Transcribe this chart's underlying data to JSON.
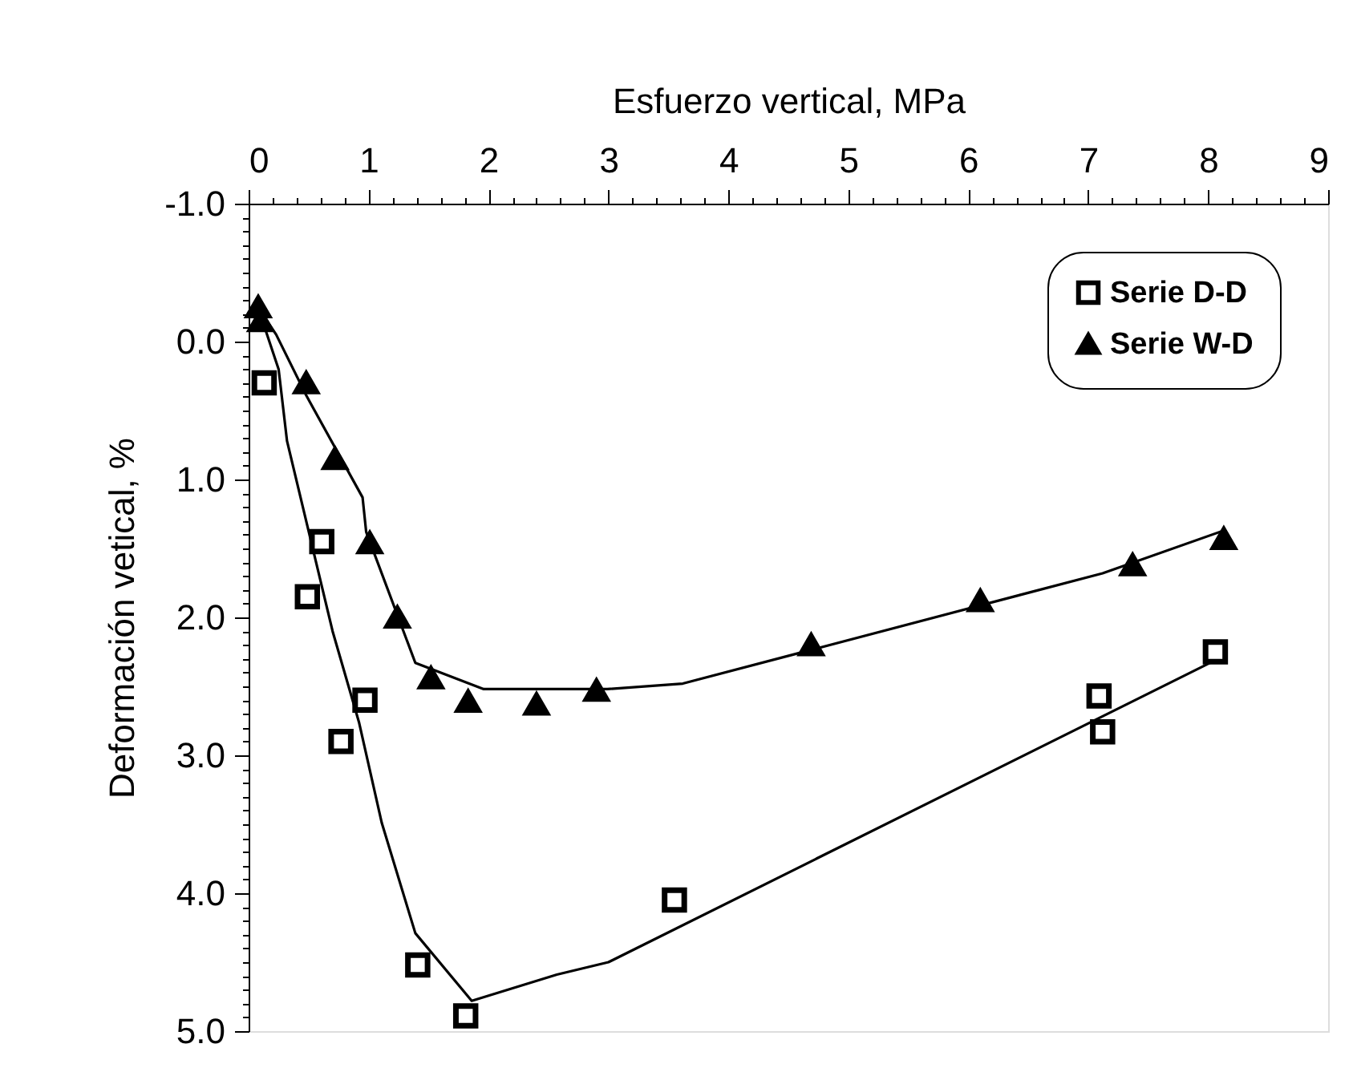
{
  "chart_data": {
    "type": "scatter",
    "xlabel": "Esfuerzo vertical,  MPa",
    "ylabel": "Deformación vetical, %",
    "xlim": [
      0,
      9
    ],
    "ylim": [
      5.0,
      -1.0
    ],
    "xticks": [
      0,
      {
        "value": 0.2,
        "label": null
      },
      {
        "value": 0.4,
        "label": null
      },
      {
        "value": 0.6,
        "label": null
      },
      {
        "value": 0.8,
        "label": null
      },
      1,
      {
        "value": 1.2,
        "label": null
      },
      {
        "value": 1.4,
        "label": null
      },
      {
        "value": 1.6,
        "label": null
      },
      {
        "value": 1.8,
        "label": null
      },
      2,
      {
        "value": 2.2,
        "label": null
      },
      {
        "value": 2.4,
        "label": null
      },
      {
        "value": 2.6,
        "label": null
      },
      {
        "value": 2.8,
        "label": null
      },
      3,
      {
        "value": 3.2,
        "label": null
      },
      {
        "value": 3.4,
        "label": null
      },
      {
        "value": 3.6,
        "label": null
      },
      {
        "value": 3.8,
        "label": null
      },
      4,
      {
        "value": 4.2,
        "label": null
      },
      {
        "value": 4.4,
        "label": null
      },
      {
        "value": 4.6,
        "label": null
      },
      {
        "value": 4.8,
        "label": null
      },
      5,
      {
        "value": 5.2,
        "label": null
      },
      {
        "value": 5.4,
        "label": null
      },
      {
        "value": 5.6,
        "label": null
      },
      {
        "value": 5.8,
        "label": null
      },
      6,
      {
        "value": 6.2,
        "label": null
      },
      {
        "value": 6.4,
        "label": null
      },
      {
        "value": 6.6,
        "label": null
      },
      {
        "value": 6.8,
        "label": null
      },
      7,
      {
        "value": 7.2,
        "label": null
      },
      {
        "value": 7.4,
        "label": null
      },
      {
        "value": 7.6,
        "label": null
      },
      {
        "value": 7.8,
        "label": null
      },
      8,
      {
        "value": 8.2,
        "label": null
      },
      {
        "value": 8.4,
        "label": null
      },
      {
        "value": 8.6,
        "label": null
      },
      {
        "value": 8.8,
        "label": null
      },
      9
    ],
    "yticks": [
      {
        "value": -1.0,
        "label": "-1.0"
      },
      {
        "value": -0.9,
        "label": null
      },
      {
        "value": -0.8,
        "label": null
      },
      {
        "value": -0.7,
        "label": null
      },
      {
        "value": -0.6,
        "label": null
      },
      {
        "value": -0.5,
        "label": null
      },
      {
        "value": -0.4,
        "label": null
      },
      {
        "value": -0.3,
        "label": null
      },
      {
        "value": -0.2,
        "label": null
      },
      {
        "value": -0.1,
        "label": null
      },
      {
        "value": 0.0,
        "label": "0.0"
      },
      {
        "value": 0.1,
        "label": null
      },
      {
        "value": 0.2,
        "label": null
      },
      {
        "value": 0.3,
        "label": null
      },
      {
        "value": 0.4,
        "label": null
      },
      {
        "value": 0.5,
        "label": null
      },
      {
        "value": 0.6,
        "label": null
      },
      {
        "value": 0.7,
        "label": null
      },
      {
        "value": 0.8,
        "label": null
      },
      {
        "value": 0.9,
        "label": null
      },
      {
        "value": 1.0,
        "label": "1.0"
      },
      {
        "value": 1.1,
        "label": null
      },
      {
        "value": 1.2,
        "label": null
      },
      {
        "value": 1.3,
        "label": null
      },
      {
        "value": 1.4,
        "label": null
      },
      {
        "value": 1.5,
        "label": null
      },
      {
        "value": 1.6,
        "label": null
      },
      {
        "value": 1.7,
        "label": null
      },
      {
        "value": 1.8,
        "label": null
      },
      {
        "value": 1.9,
        "label": null
      },
      {
        "value": 2.0,
        "label": "2.0"
      },
      {
        "value": 2.1,
        "label": null
      },
      {
        "value": 2.2,
        "label": null
      },
      {
        "value": 2.3,
        "label": null
      },
      {
        "value": 2.4,
        "label": null
      },
      {
        "value": 2.5,
        "label": null
      },
      {
        "value": 2.6,
        "label": null
      },
      {
        "value": 2.7,
        "label": null
      },
      {
        "value": 2.8,
        "label": null
      },
      {
        "value": 2.9,
        "label": null
      },
      {
        "value": 3.0,
        "label": "3.0"
      },
      {
        "value": 3.1,
        "label": null
      },
      {
        "value": 3.2,
        "label": null
      },
      {
        "value": 3.3,
        "label": null
      },
      {
        "value": 3.4,
        "label": null
      },
      {
        "value": 3.5,
        "label": null
      },
      {
        "value": 3.6,
        "label": null
      },
      {
        "value": 3.7,
        "label": null
      },
      {
        "value": 3.8,
        "label": null
      },
      {
        "value": 3.9,
        "label": null
      },
      {
        "value": 4.0,
        "label": "4.0"
      },
      {
        "value": 4.1,
        "label": null
      },
      {
        "value": 4.2,
        "label": null
      },
      {
        "value": 4.3,
        "label": null
      },
      {
        "value": 4.4,
        "label": null
      },
      {
        "value": 4.5,
        "label": null
      },
      {
        "value": 4.6,
        "label": null
      },
      {
        "value": 4.7,
        "label": null
      },
      {
        "value": 4.8,
        "label": null
      },
      {
        "value": 4.9,
        "label": null
      },
      {
        "value": 5.0,
        "label": "5.0"
      }
    ],
    "grid": false,
    "legend": "top right",
    "series": [
      {
        "name": "Serie D-D",
        "marker": "square",
        "color": "#000000",
        "x": [
          0.13,
          0.61,
          0.49,
          0.97,
          0.77,
          1.41,
          1.81,
          3.55,
          7.09,
          7.12,
          8.06
        ],
        "values": [
          0.3,
          1.45,
          1.85,
          2.6,
          2.9,
          4.52,
          4.89,
          4.05,
          2.57,
          2.83,
          2.25
        ]
      },
      {
        "name": "Serie W-D",
        "marker": "triangle",
        "color": "#000000",
        "x": [
          0.08,
          0.1,
          0.48,
          0.72,
          1.01,
          1.24,
          1.52,
          1.83,
          2.4,
          2.9,
          4.69,
          6.1,
          7.37,
          8.13
        ],
        "values": [
          -0.25,
          -0.15,
          0.3,
          0.85,
          1.46,
          2.0,
          2.44,
          2.61,
          2.63,
          2.53,
          2.2,
          1.88,
          1.62,
          1.43
        ]
      },
      {
        "type": "line",
        "marker": "none",
        "color": "#000000",
        "x": [
          0.1,
          0.25,
          0.32,
          0.7,
          0.92,
          1.11,
          1.39,
          1.86,
          2.57,
          3.0,
          8.06
        ],
        "values": [
          -0.19,
          0.2,
          0.72,
          2.1,
          2.76,
          3.49,
          4.29,
          4.78,
          4.59,
          4.5,
          2.31
        ]
      },
      {
        "type": "line",
        "marker": "none",
        "color": "#000000",
        "x": [
          0.1,
          0.23,
          0.48,
          0.95,
          0.98,
          1.39,
          1.96,
          2.99,
          3.62,
          7.12,
          8.13
        ],
        "values": [
          -0.22,
          -0.05,
          0.39,
          1.13,
          1.38,
          2.33,
          2.52,
          2.52,
          2.48,
          1.68,
          1.37
        ]
      }
    ]
  }
}
